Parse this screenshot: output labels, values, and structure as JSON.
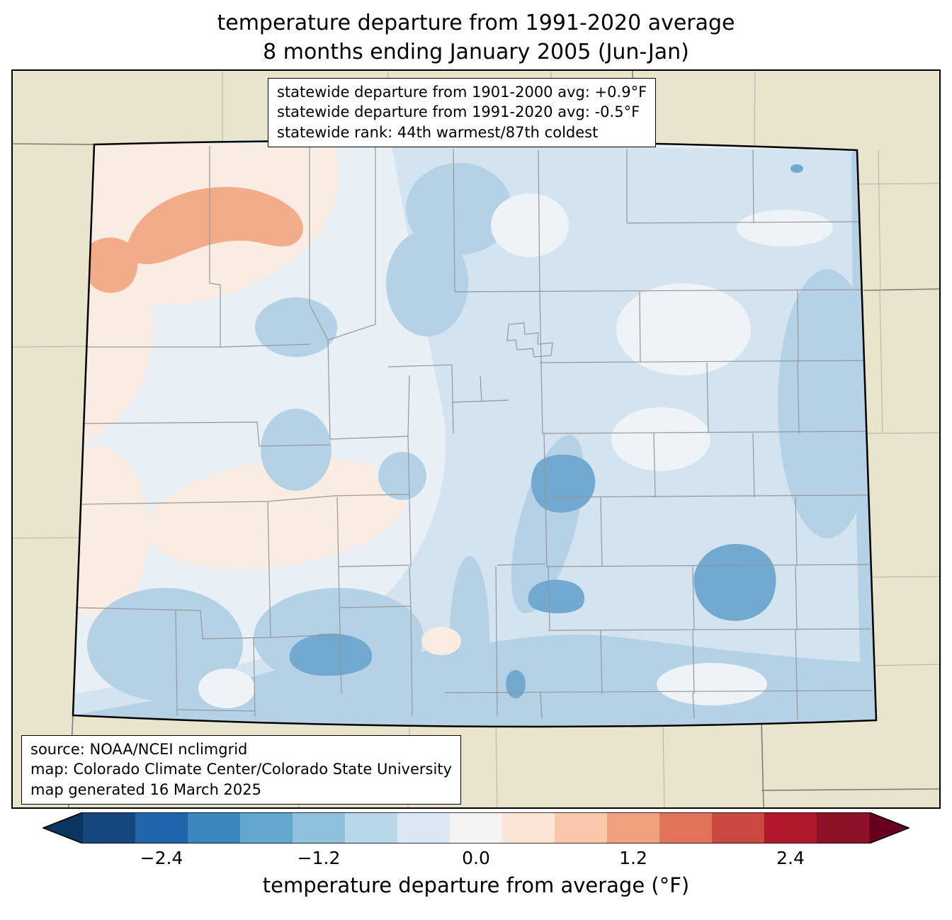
{
  "title": {
    "line1": "temperature departure from 1991-2020 average",
    "line2": "8 months ending January 2005 (Jun-Jan)"
  },
  "stats_box": {
    "lines": [
      "statewide departure from 1901-2000 avg: +0.9°F",
      "statewide departure from 1991-2020 avg: -0.5°F",
      "statewide rank: 44th warmest/87th coldest"
    ]
  },
  "source_box": {
    "lines": [
      "source: NOAA/NCEI nclimgrid",
      "map: Colorado Climate Center/Colorado State University",
      "map generated 16 March 2025"
    ]
  },
  "colorbar": {
    "label": "temperature departure from average (°F)",
    "range": [
      -3.0,
      3.0
    ],
    "ticks": [
      {
        "label": "−2.4",
        "t": 0.1
      },
      {
        "label": "−1.2",
        "t": 0.3
      },
      {
        "label": "0.0",
        "t": 0.5
      },
      {
        "label": "1.2",
        "t": 0.7
      },
      {
        "label": "2.4",
        "t": 0.9
      }
    ],
    "arrow_left_color": "#0a3560",
    "arrow_right_color": "#67001f",
    "segments": [
      "#16477f",
      "#2166ac",
      "#3a87bd",
      "#62a7ce",
      "#8fc1dc",
      "#b8d7e8",
      "#d9e8f1",
      "#f3f3f1",
      "#fbe5d7",
      "#f9c7a9",
      "#f2a17e",
      "#e0735a",
      "#ca4a42",
      "#b2182b",
      "#8c1127"
    ]
  },
  "map": {
    "colors": {
      "background": "#e9e5cd",
      "state_base": "#e8eff5",
      "blue_light": "#d3e3ef",
      "blue_medium": "#b5d1e6",
      "blue_dark": "#72a9d1",
      "white_patch": "#eef3f7",
      "pink_light": "#f9ece2",
      "salmon": "#f3ac89",
      "county_line": "#969696",
      "outside_state_line": "#7d7d7d",
      "outside_county_line": "#b0b0b0"
    }
  }
}
